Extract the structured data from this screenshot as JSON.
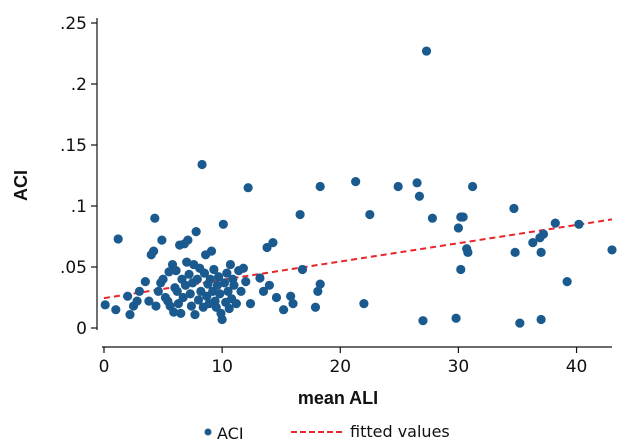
{
  "chart_data": {
    "type": "scatter",
    "xlabel": "mean ALI",
    "ylabel": "ACI",
    "xlim": [
      0,
      43
    ],
    "ylim": [
      0,
      0.25
    ],
    "x_ticks": [
      {
        "value": 0,
        "label": "0"
      },
      {
        "value": 10,
        "label": "10"
      },
      {
        "value": 20,
        "label": "20"
      },
      {
        "value": 30,
        "label": "30"
      },
      {
        "value": 40,
        "label": "40"
      }
    ],
    "y_ticks": [
      {
        "value": 0,
        "label": "0"
      },
      {
        "value": 0.05,
        "label": ".05"
      },
      {
        "value": 0.1,
        "label": ".1"
      },
      {
        "value": 0.15,
        "label": ".15"
      },
      {
        "value": 0.2,
        "label": ".2"
      },
      {
        "value": 0.25,
        "label": ".25"
      }
    ],
    "series": [
      {
        "name": "ACI",
        "color": "#1a5a8e",
        "points": [
          [
            0.1,
            0.019
          ],
          [
            1.0,
            0.015
          ],
          [
            1.2,
            0.073
          ],
          [
            2.0,
            0.026
          ],
          [
            2.2,
            0.011
          ],
          [
            2.5,
            0.018
          ],
          [
            2.8,
            0.022
          ],
          [
            3.0,
            0.03
          ],
          [
            3.5,
            0.038
          ],
          [
            3.8,
            0.022
          ],
          [
            4.0,
            0.06
          ],
          [
            4.2,
            0.063
          ],
          [
            4.3,
            0.09
          ],
          [
            4.4,
            0.018
          ],
          [
            4.6,
            0.03
          ],
          [
            4.8,
            0.037
          ],
          [
            4.9,
            0.072
          ],
          [
            5.0,
            0.04
          ],
          [
            5.2,
            0.025
          ],
          [
            5.4,
            0.022
          ],
          [
            5.5,
            0.046
          ],
          [
            5.6,
            0.018
          ],
          [
            5.8,
            0.052
          ],
          [
            5.9,
            0.013
          ],
          [
            6.0,
            0.033
          ],
          [
            6.1,
            0.047
          ],
          [
            6.2,
            0.03
          ],
          [
            6.3,
            0.02
          ],
          [
            6.4,
            0.068
          ],
          [
            6.5,
            0.012
          ],
          [
            6.6,
            0.04
          ],
          [
            6.7,
            0.025
          ],
          [
            6.8,
            0.069
          ],
          [
            6.9,
            0.035
          ],
          [
            7.0,
            0.054
          ],
          [
            7.1,
            0.072
          ],
          [
            7.2,
            0.044
          ],
          [
            7.3,
            0.028
          ],
          [
            7.4,
            0.018
          ],
          [
            7.5,
            0.037
          ],
          [
            7.6,
            0.052
          ],
          [
            7.7,
            0.011
          ],
          [
            7.8,
            0.079
          ],
          [
            7.9,
            0.04
          ],
          [
            8.0,
            0.023
          ],
          [
            8.1,
            0.049
          ],
          [
            8.2,
            0.03
          ],
          [
            8.3,
            0.134
          ],
          [
            8.4,
            0.017
          ],
          [
            8.5,
            0.045
          ],
          [
            8.6,
            0.06
          ],
          [
            8.7,
            0.026
          ],
          [
            8.8,
            0.036
          ],
          [
            8.9,
            0.02
          ],
          [
            9.0,
            0.04
          ],
          [
            9.1,
            0.063
          ],
          [
            9.2,
            0.03
          ],
          [
            9.3,
            0.048
          ],
          [
            9.4,
            0.022
          ],
          [
            9.5,
            0.017
          ],
          [
            9.6,
            0.035
          ],
          [
            9.7,
            0.042
          ],
          [
            9.8,
            0.028
          ],
          [
            9.9,
            0.012
          ],
          [
            10.0,
            0.007
          ],
          [
            10.1,
            0.085
          ],
          [
            10.2,
            0.037
          ],
          [
            10.3,
            0.021
          ],
          [
            10.4,
            0.045
          ],
          [
            10.5,
            0.03
          ],
          [
            10.6,
            0.016
          ],
          [
            10.7,
            0.052
          ],
          [
            10.8,
            0.024
          ],
          [
            10.9,
            0.04
          ],
          [
            11.0,
            0.035
          ],
          [
            11.2,
            0.02
          ],
          [
            11.4,
            0.047
          ],
          [
            11.6,
            0.03
          ],
          [
            11.8,
            0.049
          ],
          [
            12.0,
            0.038
          ],
          [
            12.2,
            0.115
          ],
          [
            12.4,
            0.02
          ],
          [
            13.2,
            0.041
          ],
          [
            13.5,
            0.03
          ],
          [
            13.8,
            0.066
          ],
          [
            14.0,
            0.035
          ],
          [
            14.3,
            0.07
          ],
          [
            14.6,
            0.025
          ],
          [
            15.2,
            0.015
          ],
          [
            15.8,
            0.026
          ],
          [
            16.0,
            0.02
          ],
          [
            16.6,
            0.093
          ],
          [
            16.8,
            0.048
          ],
          [
            17.9,
            0.017
          ],
          [
            18.1,
            0.03
          ],
          [
            18.3,
            0.036
          ],
          [
            18.3,
            0.116
          ],
          [
            21.3,
            0.12
          ],
          [
            22.0,
            0.02
          ],
          [
            22.5,
            0.093
          ],
          [
            24.9,
            0.116
          ],
          [
            26.5,
            0.119
          ],
          [
            26.7,
            0.108
          ],
          [
            27.0,
            0.006
          ],
          [
            27.3,
            0.227
          ],
          [
            27.8,
            0.09
          ],
          [
            29.8,
            0.008
          ],
          [
            30.0,
            0.082
          ],
          [
            30.2,
            0.091
          ],
          [
            30.2,
            0.048
          ],
          [
            30.4,
            0.091
          ],
          [
            30.7,
            0.065
          ],
          [
            30.8,
            0.062
          ],
          [
            31.2,
            0.116
          ],
          [
            34.7,
            0.098
          ],
          [
            34.8,
            0.062
          ],
          [
            35.2,
            0.004
          ],
          [
            36.3,
            0.07
          ],
          [
            36.9,
            0.074
          ],
          [
            37.0,
            0.062
          ],
          [
            37.0,
            0.007
          ],
          [
            37.2,
            0.077
          ],
          [
            38.2,
            0.086
          ],
          [
            39.2,
            0.038
          ],
          [
            40.2,
            0.085
          ],
          [
            43.0,
            0.064
          ]
        ]
      },
      {
        "name": "fitted values",
        "color": "#e8262a",
        "line": [
          [
            0,
            0.0245
          ],
          [
            43,
            0.089
          ]
        ]
      }
    ],
    "grid": false,
    "legend_position": "bottom"
  },
  "legend": {
    "items": [
      {
        "label": "ACI"
      },
      {
        "label": "fitted values"
      }
    ]
  }
}
